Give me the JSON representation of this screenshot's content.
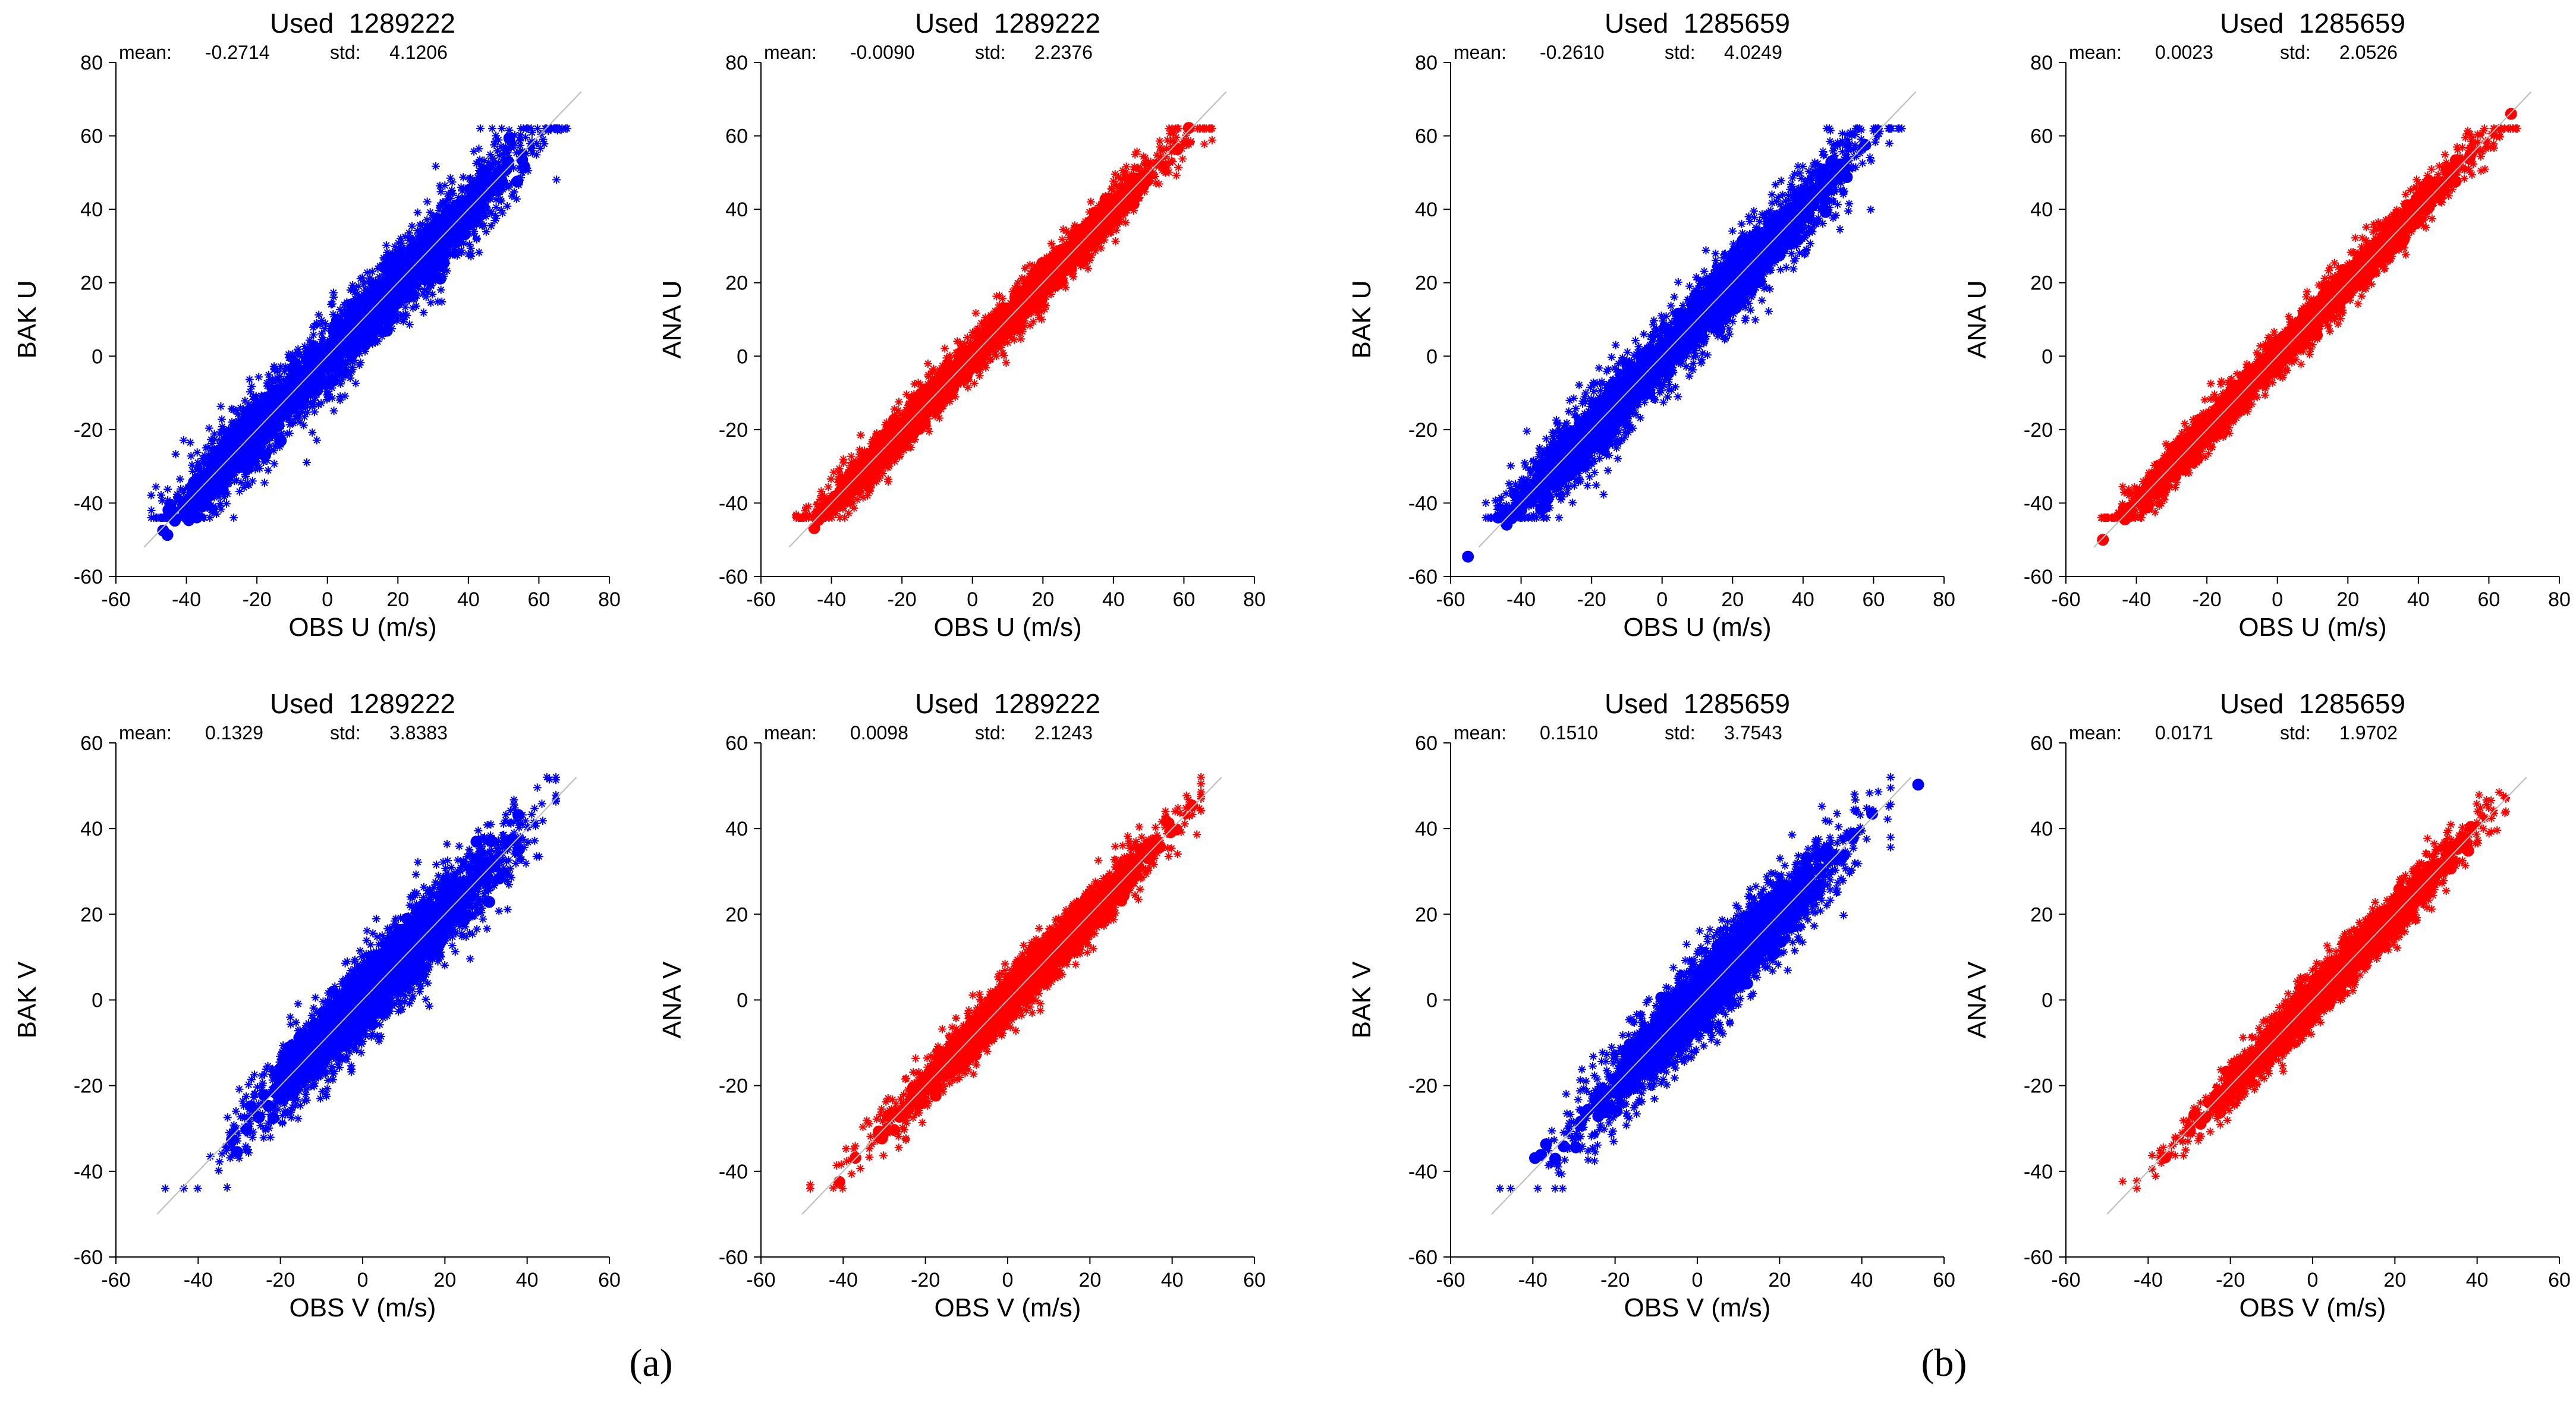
{
  "colors": {
    "bak": "#0000ff",
    "ana": "#ff0000",
    "axis": "#000000",
    "diagonal": "#bbbbbb"
  },
  "panel_labels": [
    "(a)",
    "(b)"
  ],
  "labels": {
    "mean": "mean:",
    "std": "std:",
    "used": "Used"
  },
  "chart_data": [
    {
      "type": "scatter",
      "id": "a-bak-u",
      "title": "Used  1289222",
      "mean": "-0.2714",
      "std": "4.1206",
      "xlabel": "OBS U  (m/s)",
      "ylabel": "BAK U",
      "xlim": [
        -60,
        80
      ],
      "ylim": [
        -60,
        80
      ],
      "xticks": [
        -60,
        -40,
        -20,
        0,
        20,
        40,
        60,
        80
      ],
      "yticks": [
        -60,
        -40,
        -20,
        0,
        20,
        40,
        60,
        80
      ],
      "series": [
        {
          "name": "BAK U",
          "color": "#0000ff",
          "spread": 5.5
        }
      ],
      "diagonal": true
    },
    {
      "type": "scatter",
      "id": "a-ana-u",
      "title": "Used  1289222",
      "mean": "-0.0090",
      "std": "2.2376",
      "xlabel": "OBS U  (m/s)",
      "ylabel": "ANA U",
      "xlim": [
        -60,
        80
      ],
      "ylim": [
        -60,
        80
      ],
      "xticks": [
        -60,
        -40,
        -20,
        0,
        20,
        40,
        60,
        80
      ],
      "yticks": [
        -60,
        -40,
        -20,
        0,
        20,
        40,
        60,
        80
      ],
      "series": [
        {
          "name": "ANA U",
          "color": "#ff0000",
          "spread": 3.2
        }
      ],
      "diagonal": true
    },
    {
      "type": "scatter",
      "id": "b-bak-u",
      "title": "Used  1285659",
      "mean": "-0.2610",
      "std": "4.0249",
      "xlabel": "OBS U  (m/s)",
      "ylabel": "BAK U",
      "xlim": [
        -60,
        80
      ],
      "ylim": [
        -60,
        80
      ],
      "xticks": [
        -60,
        -40,
        -20,
        0,
        20,
        40,
        60,
        80
      ],
      "yticks": [
        -60,
        -40,
        -20,
        0,
        20,
        40,
        60,
        80
      ],
      "series": [
        {
          "name": "BAK U",
          "color": "#0000ff",
          "spread": 5.3
        }
      ],
      "diagonal": true
    },
    {
      "type": "scatter",
      "id": "b-ana-u",
      "title": "Used  1285659",
      "mean": "0.0023",
      "std": "2.0526",
      "xlabel": "OBS U  (m/s)",
      "ylabel": "ANA U",
      "xlim": [
        -60,
        80
      ],
      "ylim": [
        -60,
        80
      ],
      "xticks": [
        -60,
        -40,
        -20,
        0,
        20,
        40,
        60,
        80
      ],
      "yticks": [
        -60,
        -40,
        -20,
        0,
        20,
        40,
        60,
        80
      ],
      "series": [
        {
          "name": "ANA U",
          "color": "#ff0000",
          "spread": 3.0
        }
      ],
      "diagonal": true
    },
    {
      "type": "scatter",
      "id": "a-bak-v",
      "title": "Used  1289222",
      "mean": "0.1329",
      "std": "3.8383",
      "xlabel": "OBS V  (m/s)",
      "ylabel": "BAK V",
      "xlim": [
        -60,
        60
      ],
      "ylim": [
        -60,
        60
      ],
      "xticks": [
        -60,
        -40,
        -20,
        0,
        20,
        40,
        60
      ],
      "yticks": [
        -60,
        -40,
        -20,
        0,
        20,
        40,
        60
      ],
      "series": [
        {
          "name": "BAK V",
          "color": "#0000ff",
          "spread": 5.0
        }
      ],
      "diagonal": true
    },
    {
      "type": "scatter",
      "id": "a-ana-v",
      "title": "Used  1289222",
      "mean": "0.0098",
      "std": "2.1243",
      "xlabel": "OBS V  (m/s)",
      "ylabel": "ANA V",
      "xlim": [
        -60,
        60
      ],
      "ylim": [
        -60,
        60
      ],
      "xticks": [
        -60,
        -40,
        -20,
        0,
        20,
        40,
        60
      ],
      "yticks": [
        -60,
        -40,
        -20,
        0,
        20,
        40,
        60
      ],
      "series": [
        {
          "name": "ANA V",
          "color": "#ff0000",
          "spread": 3.0
        }
      ],
      "diagonal": true
    },
    {
      "type": "scatter",
      "id": "b-bak-v",
      "title": "Used  1285659",
      "mean": "0.1510",
      "std": "3.7543",
      "xlabel": "OBS V  (m/s)",
      "ylabel": "BAK V",
      "xlim": [
        -60,
        60
      ],
      "ylim": [
        -60,
        60
      ],
      "xticks": [
        -60,
        -40,
        -20,
        0,
        20,
        40,
        60
      ],
      "yticks": [
        -60,
        -40,
        -20,
        0,
        20,
        40,
        60
      ],
      "series": [
        {
          "name": "BAK V",
          "color": "#0000ff",
          "spread": 4.9
        }
      ],
      "diagonal": true
    },
    {
      "type": "scatter",
      "id": "b-ana-v",
      "title": "Used  1285659",
      "mean": "0.0171",
      "std": "1.9702",
      "xlabel": "OBS V  (m/s)",
      "ylabel": "ANA V",
      "xlim": [
        -60,
        60
      ],
      "ylim": [
        -60,
        60
      ],
      "xticks": [
        -60,
        -40,
        -20,
        0,
        20,
        40,
        60
      ],
      "yticks": [
        -60,
        -40,
        -20,
        0,
        20,
        40,
        60
      ],
      "series": [
        {
          "name": "ANA V",
          "color": "#ff0000",
          "spread": 2.8
        }
      ],
      "diagonal": true
    }
  ]
}
